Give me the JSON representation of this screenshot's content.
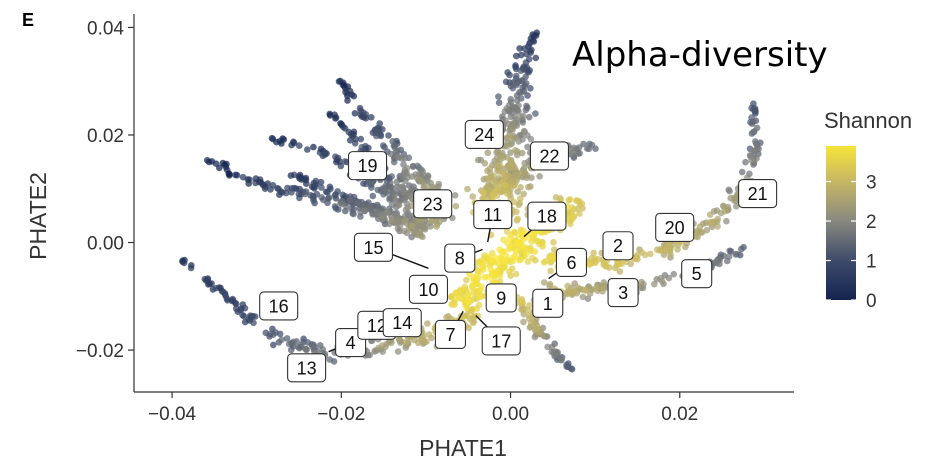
{
  "panel_label": "E",
  "chart_data": {
    "type": "scatter",
    "title": "Alpha-diversity",
    "xlabel": "PHATE1",
    "ylabel": "PHATE2",
    "xlim": [
      -0.0445,
      0.0335
    ],
    "ylim": [
      -0.0278,
      0.0425
    ],
    "x_ticks": [
      -0.04,
      -0.02,
      0.0,
      0.02
    ],
    "x_tick_labels": [
      "−0.04",
      "−0.02",
      "0.00",
      "0.02"
    ],
    "y_ticks": [
      -0.02,
      0.0,
      0.02,
      0.04
    ],
    "y_tick_labels": [
      "−0.02",
      "0.00",
      "0.02",
      "0.04"
    ],
    "grid": false,
    "color_scale": {
      "name": "Shannon",
      "min": 0,
      "max": 3.9,
      "ticks": [
        0,
        1,
        2,
        3
      ],
      "tick_labels": [
        "0",
        "1",
        "2",
        "3"
      ],
      "low_color": "#1a2a55",
      "mid_color": "#8a8a80",
      "high_color": "#f5e33c",
      "legend_position": "right"
    },
    "cluster_labels": [
      {
        "text": "1",
        "x": 0.0044,
        "y": -0.0113,
        "px": 0.0044,
        "py": -0.0113
      },
      {
        "text": "2",
        "x": 0.0127,
        "y": -0.0006,
        "px": 0.0127,
        "py": -0.0006
      },
      {
        "text": "3",
        "x": 0.0133,
        "y": -0.0093,
        "px": 0.0133,
        "py": -0.0093
      },
      {
        "text": "4",
        "x": -0.0189,
        "y": -0.0186,
        "px": -0.0215,
        "py": -0.0203
      },
      {
        "text": "5",
        "x": 0.022,
        "y": -0.0058,
        "px": 0.022,
        "py": -0.0058
      },
      {
        "text": "6",
        "x": 0.0072,
        "y": -0.0037,
        "px": 0.0045,
        "py": -0.0067
      },
      {
        "text": "7",
        "x": -0.0071,
        "y": -0.0171,
        "px": -0.0056,
        "py": -0.0128
      },
      {
        "text": "8",
        "x": -0.006,
        "y": -0.0029,
        "px": -0.0033,
        "py": -0.0013
      },
      {
        "text": "9",
        "x": -0.0011,
        "y": -0.0103,
        "px": -0.0011,
        "py": -0.0103
      },
      {
        "text": "10",
        "x": -0.0097,
        "y": -0.0087,
        "px": -0.0097,
        "py": -0.0087
      },
      {
        "text": "11",
        "x": -0.0021,
        "y": 0.0052,
        "px": -0.0027,
        "py": 0.0001
      },
      {
        "text": "12",
        "x": -0.0158,
        "y": -0.0154,
        "px": -0.0158,
        "py": -0.0154
      },
      {
        "text": "13",
        "x": -0.0241,
        "y": -0.0233,
        "px": -0.0241,
        "py": -0.0233
      },
      {
        "text": "14",
        "x": -0.0128,
        "y": -0.0149,
        "px": -0.0128,
        "py": -0.0149
      },
      {
        "text": "15",
        "x": -0.0162,
        "y": -0.0009,
        "px": -0.0097,
        "py": -0.0048
      },
      {
        "text": "16",
        "x": -0.0274,
        "y": -0.0118,
        "px": -0.0274,
        "py": -0.0118
      },
      {
        "text": "17",
        "x": -0.0011,
        "y": -0.0183,
        "px": -0.0041,
        "py": -0.0136
      },
      {
        "text": "18",
        "x": 0.0043,
        "y": 0.0049,
        "px": 0.0016,
        "py": 0.0011
      },
      {
        "text": "19",
        "x": -0.0169,
        "y": 0.0143,
        "px": -0.0169,
        "py": 0.0143
      },
      {
        "text": "20",
        "x": 0.0194,
        "y": 0.0028,
        "px": 0.0194,
        "py": 0.0028
      },
      {
        "text": "21",
        "x": 0.0292,
        "y": 0.0091,
        "px": 0.0292,
        "py": 0.0091
      },
      {
        "text": "22",
        "x": 0.0046,
        "y": 0.0161,
        "px": 0.0046,
        "py": 0.0161
      },
      {
        "text": "23",
        "x": -0.0092,
        "y": 0.0072,
        "px": -0.0092,
        "py": 0.0072
      },
      {
        "text": "24",
        "x": -0.0031,
        "y": 0.0201,
        "px": -0.0031,
        "py": 0.0201
      }
    ],
    "trajectory_branches": [
      {
        "name": "top-arm",
        "path": [
          [
            -0.002,
            0.005
          ],
          [
            -0.0005,
            0.015
          ],
          [
            0.0005,
            0.025
          ],
          [
            0.0015,
            0.033
          ],
          [
            0.003,
            0.039
          ]
        ],
        "width": [
          0.011,
          0.009,
          0.006,
          0.004,
          0.0015
        ],
        "value": [
          3.4,
          2.6,
          1.8,
          1.0,
          0.4
        ]
      },
      {
        "name": "upper-left-1",
        "path": [
          [
            -0.007,
            0.006
          ],
          [
            -0.0115,
            0.013
          ],
          [
            -0.016,
            0.021
          ],
          [
            -0.0205,
            0.0305
          ]
        ],
        "width": [
          0.007,
          0.005,
          0.003,
          0.0012
        ],
        "value": [
          2.8,
          2.0,
          1.1,
          0.2
        ]
      },
      {
        "name": "upper-left-2",
        "path": [
          [
            -0.008,
            0.004
          ],
          [
            -0.013,
            0.01
          ],
          [
            -0.0175,
            0.0175
          ],
          [
            -0.0215,
            0.0245
          ]
        ],
        "width": [
          0.007,
          0.005,
          0.003,
          0.0012
        ],
        "value": [
          2.7,
          1.8,
          1.0,
          0.2
        ]
      },
      {
        "name": "upper-left-3",
        "path": [
          [
            -0.009,
            0.003
          ],
          [
            -0.014,
            0.009
          ],
          [
            -0.02,
            0.0155
          ],
          [
            -0.0285,
            0.0195
          ]
        ],
        "width": [
          0.007,
          0.005,
          0.003,
          0.0012
        ],
        "value": [
          2.5,
          1.7,
          0.9,
          0.3
        ]
      },
      {
        "name": "upper-left-4",
        "path": [
          [
            -0.01,
            0.002
          ],
          [
            -0.016,
            0.006
          ],
          [
            -0.022,
            0.01
          ],
          [
            -0.026,
            0.013
          ]
        ],
        "width": [
          0.006,
          0.004,
          0.003,
          0.0012
        ],
        "value": [
          2.3,
          1.6,
          0.9,
          0.4
        ]
      },
      {
        "name": "left-long",
        "path": [
          [
            -0.01,
            0.002
          ],
          [
            -0.016,
            0.0055
          ],
          [
            -0.023,
            0.0085
          ],
          [
            -0.03,
            0.011
          ],
          [
            -0.036,
            0.0155
          ]
        ],
        "width": [
          0.006,
          0.005,
          0.004,
          0.003,
          0.0012
        ],
        "value": [
          2.4,
          1.8,
          1.2,
          0.6,
          0.1
        ]
      },
      {
        "name": "bottom-left",
        "path": [
          [
            -0.004,
            -0.013
          ],
          [
            -0.01,
            -0.0175
          ],
          [
            -0.016,
            -0.0195
          ],
          [
            -0.023,
            -0.0205
          ],
          [
            -0.029,
            -0.0165
          ],
          [
            -0.034,
            -0.0095
          ],
          [
            -0.0395,
            -0.0025
          ]
        ],
        "width": [
          0.006,
          0.006,
          0.005,
          0.0045,
          0.003,
          0.002,
          0.0012
        ],
        "value": [
          3.3,
          2.8,
          2.2,
          1.7,
          1.2,
          0.8,
          0.4
        ]
      },
      {
        "name": "right-arm",
        "path": [
          [
            0.004,
            -0.003
          ],
          [
            0.012,
            -0.004
          ],
          [
            0.019,
            -0.001
          ],
          [
            0.024,
            0.004
          ],
          [
            0.0275,
            0.01
          ],
          [
            0.029,
            0.018
          ],
          [
            0.0285,
            0.026
          ]
        ],
        "width": [
          0.006,
          0.005,
          0.0045,
          0.004,
          0.003,
          0.002,
          0.0012
        ],
        "value": [
          3.6,
          3.2,
          2.9,
          2.6,
          2.2,
          1.7,
          1.2
        ]
      },
      {
        "name": "right-lower",
        "path": [
          [
            0.003,
            -0.009
          ],
          [
            0.01,
            -0.009
          ],
          [
            0.017,
            -0.0075
          ],
          [
            0.024,
            -0.004
          ],
          [
            0.028,
            -0.001
          ]
        ],
        "width": [
          0.005,
          0.0045,
          0.004,
          0.003,
          0.002
        ],
        "value": [
          3.0,
          2.6,
          2.2,
          1.8,
          1.5
        ]
      },
      {
        "name": "center-core",
        "path": [
          [
            -0.006,
            -0.012
          ],
          [
            -0.003,
            -0.006
          ],
          [
            0.0,
            -0.001
          ],
          [
            0.005,
            0.004
          ],
          [
            0.008,
            0.008
          ]
        ],
        "width": [
          0.007,
          0.009,
          0.01,
          0.008,
          0.006
        ],
        "value": [
          3.7,
          3.9,
          3.9,
          3.7,
          3.4
        ]
      },
      {
        "name": "upper-center",
        "path": [
          [
            -0.003,
            0.008
          ],
          [
            0.0,
            0.012
          ],
          [
            0.005,
            0.016
          ],
          [
            0.01,
            0.018
          ]
        ],
        "width": [
          0.007,
          0.006,
          0.004,
          0.003
        ],
        "value": [
          3.0,
          2.6,
          2.1,
          1.6
        ]
      },
      {
        "name": "bottom-spike",
        "path": [
          [
            0.001,
            -0.01
          ],
          [
            0.003,
            -0.016
          ],
          [
            0.005,
            -0.02
          ],
          [
            0.007,
            -0.0235
          ]
        ],
        "width": [
          0.004,
          0.003,
          0.002,
          0.001
        ],
        "value": [
          3.3,
          2.6,
          1.9,
          1.3
        ]
      }
    ]
  }
}
